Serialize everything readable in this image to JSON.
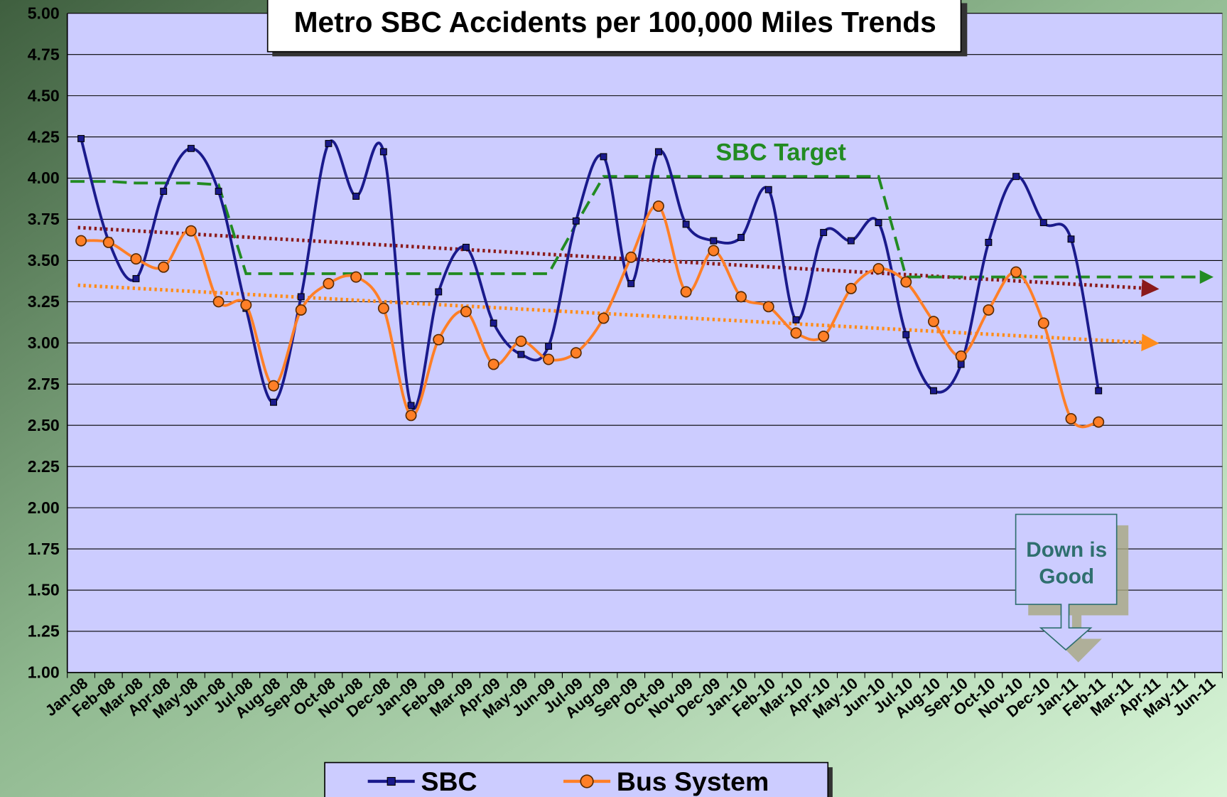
{
  "chart_data": {
    "type": "line",
    "title": "Metro SBC Accidents per 100,000 Miles Trends",
    "categories": [
      "Jan-08",
      "Feb-08",
      "Mar-08",
      "Apr-08",
      "May-08",
      "Jun-08",
      "Jul-08",
      "Aug-08",
      "Sep-08",
      "Oct-08",
      "Nov-08",
      "Dec-08",
      "Jan-09",
      "Feb-09",
      "Mar-09",
      "Apr-09",
      "May-09",
      "Jun-09",
      "Jul-09",
      "Aug-09",
      "Sep-09",
      "Oct-09",
      "Nov-09",
      "Dec-09",
      "Jan-10",
      "Feb-10",
      "Mar-10",
      "Apr-10",
      "May-10",
      "Jun-10",
      "Jul-10",
      "Aug-10",
      "Sep-10",
      "Oct-10",
      "Nov-10",
      "Dec-10",
      "Jan-11",
      "Feb-11",
      "Mar-11",
      "Apr-11",
      "May-11",
      "Jun-11"
    ],
    "series": [
      {
        "name": "SBC",
        "color": "#1a1a8c",
        "marker": "square",
        "values": [
          4.24,
          3.62,
          3.39,
          3.92,
          4.18,
          3.92,
          3.21,
          2.64,
          3.28,
          4.21,
          3.89,
          4.16,
          2.62,
          3.31,
          3.58,
          3.12,
          2.93,
          2.98,
          3.74,
          4.13,
          3.36,
          4.16,
          3.72,
          3.62,
          3.64,
          3.93,
          3.14,
          3.67,
          3.62,
          3.73,
          3.05,
          2.71,
          2.87,
          3.61,
          4.01,
          3.73,
          3.63,
          2.71,
          null,
          null,
          null,
          null
        ]
      },
      {
        "name": "Bus System",
        "color": "#ff7f27",
        "marker": "circle",
        "values": [
          3.62,
          3.61,
          3.51,
          3.46,
          3.68,
          3.25,
          3.23,
          2.74,
          3.2,
          3.36,
          3.4,
          3.21,
          2.56,
          3.02,
          3.19,
          2.87,
          3.01,
          2.9,
          2.94,
          3.15,
          3.52,
          3.83,
          3.31,
          3.56,
          3.28,
          3.22,
          3.06,
          3.04,
          3.33,
          3.45,
          3.37,
          3.13,
          2.92,
          3.2,
          3.43,
          3.12,
          2.54,
          2.52,
          null,
          null,
          null,
          null
        ]
      }
    ],
    "target": {
      "label": "SBC Target",
      "color": "#228b22",
      "values": [
        3.98,
        3.98,
        3.97,
        3.97,
        3.97,
        3.96,
        3.42,
        3.42,
        3.42,
        3.42,
        3.42,
        3.42,
        3.42,
        3.42,
        3.42,
        3.42,
        3.42,
        3.42,
        3.72,
        4.01,
        4.01,
        4.01,
        4.01,
        4.01,
        4.01,
        4.01,
        4.01,
        4.01,
        4.01,
        4.01,
        3.4,
        3.4,
        3.4,
        3.4,
        3.4,
        3.4,
        3.4,
        3.4,
        3.4,
        3.4,
        3.4,
        3.4
      ]
    },
    "trendlines": [
      {
        "color": "#8b1a1a",
        "values": [
          3.7,
          3.33
        ]
      },
      {
        "color": "#ff8c1a",
        "values": [
          3.35,
          3.0
        ]
      }
    ],
    "note": [
      "Down is",
      "Good"
    ],
    "ylim": [
      1,
      5
    ],
    "yticks": [
      {
        "value": 1,
        "label": "1.00"
      },
      {
        "value": 1.25,
        "label": "1.25"
      },
      {
        "value": 1.5,
        "label": "1.50"
      },
      {
        "value": 1.75,
        "label": "1.75"
      },
      {
        "value": 2,
        "label": "2.00"
      },
      {
        "value": 2.25,
        "label": "2.25"
      },
      {
        "value": 2.5,
        "label": "2.50"
      },
      {
        "value": 2.75,
        "label": "2.75"
      },
      {
        "value": 3,
        "label": "3.00"
      },
      {
        "value": 3.25,
        "label": "3.25"
      },
      {
        "value": 3.5,
        "label": "3.50"
      },
      {
        "value": 3.75,
        "label": "3.75"
      },
      {
        "value": 4,
        "label": "4.00"
      },
      {
        "value": 4.25,
        "label": "4.25"
      },
      {
        "value": 4.5,
        "label": "4.50"
      },
      {
        "value": 4.75,
        "label": "4.75"
      },
      {
        "value": 5,
        "label": "5.00"
      }
    ],
    "grid": true,
    "legend": "bottom",
    "plot_color": "#ccccff"
  }
}
